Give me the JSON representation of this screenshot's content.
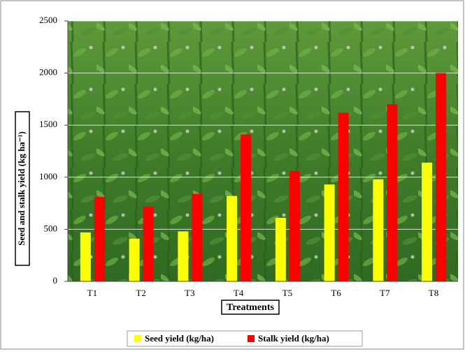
{
  "chart_data": {
    "type": "bar",
    "x_label": "Treatments",
    "y_label": "Seed and stalk yield (kg ha⁻¹)",
    "categories": [
      "T1",
      "T2",
      "T3",
      "T4",
      "T5",
      "T6",
      "T7",
      "T8"
    ],
    "series": [
      {
        "name": "Seed yield (kg/ha)",
        "color": "#ffff00",
        "values": [
          470,
          410,
          480,
          820,
          610,
          930,
          980,
          1140
        ]
      },
      {
        "name": "Stalk yield (kg/ha)",
        "color": "#ff0000",
        "values": [
          810,
          720,
          840,
          1410,
          1060,
          1620,
          1700,
          2000
        ]
      }
    ],
    "ylim": [
      0,
      2500
    ],
    "yticks": [
      0,
      500,
      1000,
      1500,
      2000,
      2500
    ],
    "grid": true
  }
}
